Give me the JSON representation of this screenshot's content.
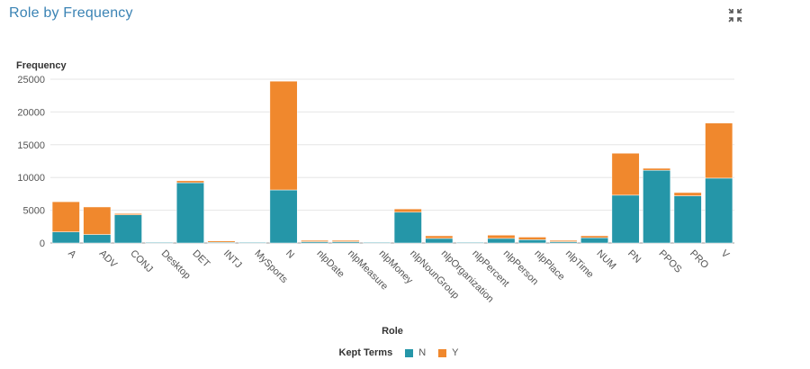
{
  "panel": {
    "title": "Role by Frequency",
    "maximize_icon": "maximize-icon"
  },
  "colors": {
    "N": "#2596a8",
    "Y": "#f0882d",
    "grid": "#e6e6e6",
    "axis": "#999999"
  },
  "chart_data": {
    "type": "bar",
    "stacked": true,
    "xlabel": "Role",
    "ylabel": "Frequency",
    "ylim": [
      0,
      25000
    ],
    "yticks": [
      0,
      5000,
      10000,
      15000,
      20000,
      25000
    ],
    "grid": true,
    "legend_placement": "bottom-center",
    "categories": [
      "A",
      "ADV",
      "CONJ",
      "Desktop",
      "DET",
      "INTJ",
      "MySports",
      "N",
      "nlpDate",
      "nlpMeasure",
      "nlpMoney",
      "nlpNounGroup",
      "nlpOrganization",
      "nlpPercent",
      "nlpPerson",
      "nlpPlace",
      "nlpTime",
      "NUM",
      "PN",
      "PPOS",
      "PRO",
      "V"
    ],
    "series": [
      {
        "name": "N",
        "values": [
          1700,
          1300,
          4300,
          100,
          9200,
          100,
          100,
          8100,
          200,
          200,
          100,
          4700,
          700,
          100,
          700,
          500,
          200,
          800,
          7300,
          11100,
          7200,
          9900
        ]
      },
      {
        "name": "Y",
        "values": [
          4600,
          4200,
          200,
          0,
          300,
          200,
          0,
          16600,
          200,
          200,
          0,
          500,
          400,
          0,
          500,
          400,
          200,
          300,
          6400,
          300,
          500,
          8400
        ]
      }
    ]
  },
  "legend": {
    "title": "Kept Terms",
    "items": [
      {
        "label": "N"
      },
      {
        "label": "Y"
      }
    ]
  }
}
